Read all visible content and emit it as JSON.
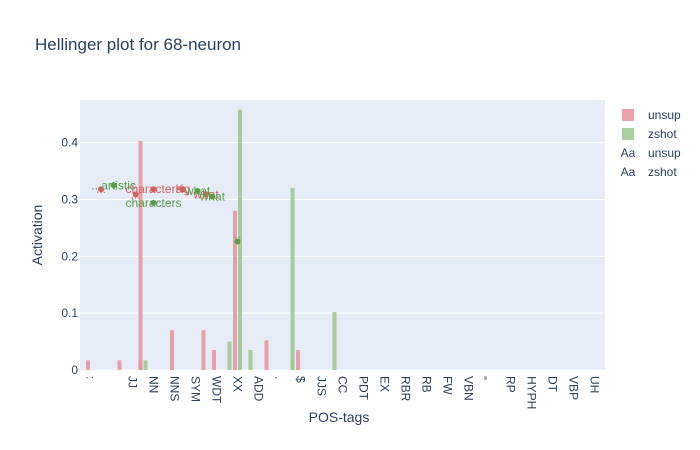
{
  "chart_data": {
    "type": "bar",
    "title": "Hellinger plot for 68-neuron",
    "xlabel": "POS-tags",
    "ylabel": "Activation",
    "ylim": [
      0,
      0.475
    ],
    "yticks": [
      0,
      0.1,
      0.2,
      0.3,
      0.4
    ],
    "ytick_labels": [
      "0",
      "0.1",
      "0.2",
      "0.3",
      "0.4"
    ],
    "grid": true,
    "legend_position": "top-right",
    "categories": [
      ":",
      "''",
      "JJ",
      "NN",
      "NNS",
      "SYM",
      "WDT",
      "XX",
      "ADD",
      ".",
      "$",
      "JJS",
      "CC",
      "PDT",
      "EX",
      "RBR",
      "RB",
      "FW",
      "VBN",
      "„",
      "RP",
      "HYPH",
      "DT",
      "VBP",
      "UH"
    ],
    "xtick_labels": [
      ":",
      "",
      "JJ",
      "NN",
      "NNS",
      "SYM",
      "WDT",
      "XX",
      "ADD",
      ".",
      "$",
      "JJS",
      "CC",
      "PDT",
      "EX",
      "RBR",
      "RB",
      "FW",
      "VBN",
      "„",
      "RP",
      "HYPH",
      "DT",
      "VBP",
      "UH"
    ],
    "series": [
      {
        "name": "unsup",
        "color": "#e8929a",
        "values": [
          0.017,
          0.017,
          0.017,
          0.403,
          0.07,
          0.07,
          0.035,
          0.28,
          0.0,
          0.052,
          0.035,
          0,
          0,
          0,
          0,
          0,
          0,
          0,
          0,
          0,
          0,
          0,
          0,
          0,
          0
        ],
        "offsets": [
          0,
          0.5,
          0.5,
          -0.5,
          0,
          0.5,
          0,
          0,
          0,
          -0.5,
          0,
          0,
          0,
          0,
          0,
          0,
          0,
          0,
          0,
          0,
          0,
          0,
          0,
          0,
          0
        ]
      },
      {
        "name": "zshot",
        "color": "#9cc68d",
        "values": [
          0,
          0,
          0.017,
          0,
          0,
          0,
          0.05,
          0.458,
          0.035,
          0.017,
          0.32,
          0,
          0.102,
          0,
          0,
          0,
          0,
          0,
          0,
          0,
          0,
          0,
          0,
          0,
          0
        ],
        "offsets": [
          0,
          0,
          0.5,
          0,
          0,
          0,
          0.5,
          0,
          -0.5,
          0.5,
          -0.5,
          0,
          -0.5,
          0,
          0,
          0,
          0,
          0,
          0,
          0,
          0,
          0,
          0,
          0,
          0
        ]
      }
    ],
    "annotations": [
      {
        "series": "unsup",
        "text": "...",
        "x": 0.5,
        "y": 0.318,
        "color": "#d95f5f"
      },
      {
        "series": "unsup",
        "text": "...",
        "x": 2.15,
        "y": 0.309,
        "color": "#d95f5f"
      },
      {
        "series": "unsup",
        "text": "characters",
        "x": 3.0,
        "y": 0.318,
        "color": "#d95f5f"
      },
      {
        "series": "unsup",
        "text": "what",
        "x": 5.5,
        "y": 0.309,
        "color": "#d95f5f"
      },
      {
        "series": "unsup",
        "text": "Kg",
        "x": 4.4,
        "y": 0.318,
        "color": "#d95f5f"
      },
      {
        "series": "zshot",
        "text": "...artistic",
        "x": 1.1,
        "y": 0.325,
        "color": "#5a9e4a"
      },
      {
        "series": "zshot",
        "text": "characters",
        "x": 3.0,
        "y": 0.294,
        "color": "#5a9e4a"
      },
      {
        "series": "zshot",
        "text": "what",
        "x": 5.1,
        "y": 0.315,
        "color": "#5a9e4a"
      },
      {
        "series": "zshot",
        "text": "what",
        "x": 5.8,
        "y": 0.305,
        "color": "#5a9e4a"
      },
      {
        "series": "zshot",
        "text": "``",
        "x": 7.0,
        "y": 0.226,
        "color": "#5a9e4a"
      }
    ],
    "legend": [
      {
        "label": "unsup",
        "kind": "bar",
        "color": "#e8929a"
      },
      {
        "label": "zshot",
        "kind": "bar",
        "color": "#9cc68d"
      },
      {
        "label": "unsup",
        "kind": "text",
        "color": "#d95f5f",
        "glyph": "Aa"
      },
      {
        "label": "zshot",
        "kind": "text",
        "color": "#5a9e4a",
        "glyph": "Aa"
      }
    ]
  }
}
